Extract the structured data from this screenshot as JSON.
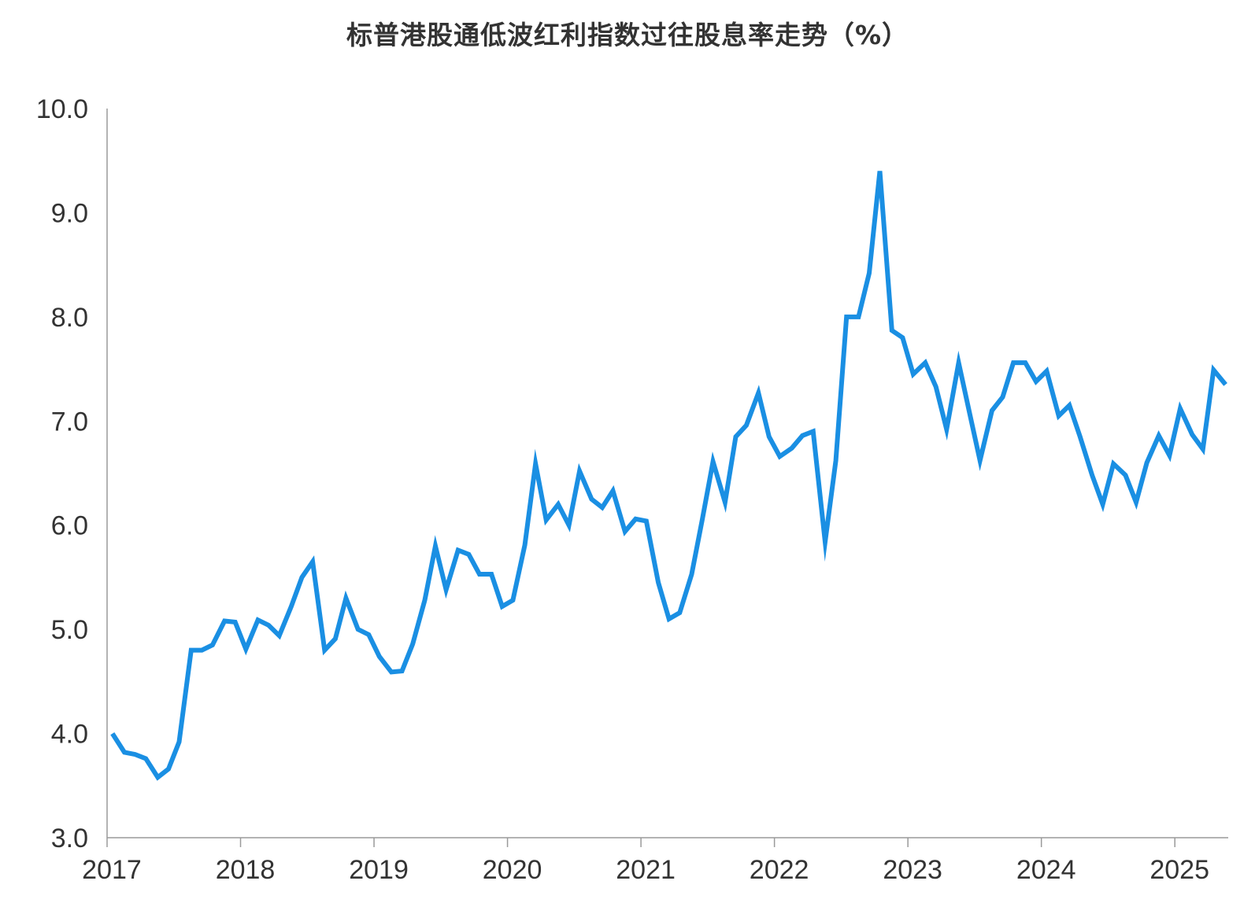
{
  "chart_data": {
    "type": "line",
    "title": "标普港股通低波红利指数过往股息率走势（%）",
    "xlabel": "",
    "ylabel": "",
    "ylim": [
      3.0,
      10.0
    ],
    "yticks": [
      "3.0",
      "4.0",
      "5.0",
      "6.0",
      "7.0",
      "8.0",
      "9.0",
      "10.0"
    ],
    "xlim": [
      2017.0,
      2025.4
    ],
    "xticks": [
      "2017",
      "2018",
      "2019",
      "2020",
      "2021",
      "2022",
      "2023",
      "2024",
      "2025"
    ],
    "grid": false,
    "legend": "none",
    "line_color": "#1a8fe3",
    "series": [
      {
        "x": [
          2017.04,
          2017.13,
          2017.21,
          2017.29,
          2017.38,
          2017.46,
          2017.54,
          2017.63,
          2017.71,
          2017.79,
          2017.88,
          2017.96,
          2018.04,
          2018.13,
          2018.21,
          2018.29,
          2018.38,
          2018.46,
          2018.54,
          2018.63,
          2018.71,
          2018.79,
          2018.88,
          2018.96,
          2019.04,
          2019.13,
          2019.21,
          2019.29,
          2019.38,
          2019.46,
          2019.54,
          2019.63,
          2019.71,
          2019.79,
          2019.88,
          2019.96,
          2020.04,
          2020.13,
          2020.21,
          2020.29,
          2020.38,
          2020.46,
          2020.54,
          2020.63,
          2020.71,
          2020.79,
          2020.88,
          2020.96,
          2021.04,
          2021.13,
          2021.21,
          2021.29,
          2021.38,
          2021.46,
          2021.54,
          2021.63,
          2021.71,
          2021.79,
          2021.88,
          2021.96,
          2022.04,
          2022.13,
          2022.21,
          2022.29,
          2022.38,
          2022.46,
          2022.54,
          2022.63,
          2022.71,
          2022.79,
          2022.88,
          2022.96,
          2023.04,
          2023.13,
          2023.21,
          2023.29,
          2023.38,
          2023.46,
          2023.54,
          2023.63,
          2023.71,
          2023.79,
          2023.88,
          2023.96,
          2024.04,
          2024.13,
          2024.21,
          2024.29,
          2024.38,
          2024.46,
          2024.54,
          2024.63,
          2024.71,
          2024.79,
          2024.88,
          2024.96,
          2025.04,
          2025.13,
          2025.21,
          2025.29,
          2025.38
        ],
        "values": [
          4.0,
          3.82,
          3.8,
          3.76,
          3.58,
          3.66,
          3.92,
          4.8,
          4.8,
          4.85,
          5.08,
          5.07,
          4.81,
          5.09,
          5.04,
          4.94,
          5.22,
          5.5,
          5.65,
          4.8,
          4.91,
          5.3,
          5.0,
          4.95,
          4.74,
          4.59,
          4.6,
          4.86,
          5.28,
          5.8,
          5.38,
          5.76,
          5.72,
          5.53,
          5.53,
          5.22,
          5.28,
          5.81,
          6.59,
          6.05,
          6.2,
          6.0,
          6.52,
          6.25,
          6.17,
          6.33,
          5.94,
          6.06,
          6.04,
          5.45,
          5.1,
          5.16,
          5.53,
          6.06,
          6.61,
          6.22,
          6.85,
          6.96,
          7.27,
          6.85,
          6.66,
          6.74,
          6.86,
          6.9,
          5.84,
          6.62,
          8.0,
          8.0,
          8.42,
          9.4,
          7.87,
          7.8,
          7.45,
          7.56,
          7.33,
          6.92,
          7.56,
          7.09,
          6.62,
          7.1,
          7.23,
          7.56,
          7.56,
          7.38,
          7.48,
          7.05,
          7.15,
          6.85,
          6.48,
          6.2,
          6.59,
          6.48,
          6.22,
          6.6,
          6.86,
          6.67,
          7.12,
          6.87,
          6.73,
          7.49,
          7.35
        ]
      }
    ]
  }
}
